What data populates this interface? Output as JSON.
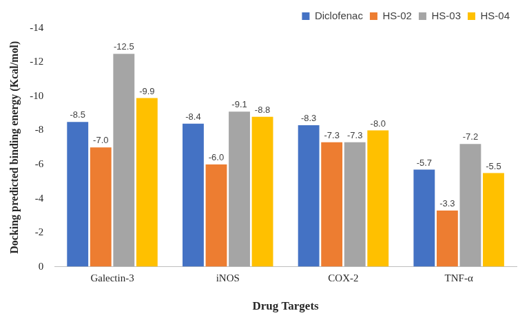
{
  "chart_data": {
    "type": "bar",
    "x_label": "Drug Targets",
    "y_label": "Docking predicted binding energy (Kcal/mol)",
    "categories": [
      "Galectin-3",
      "iNOS",
      "COX-2",
      "TNF-α"
    ],
    "series": [
      {
        "name": "Diclofenac",
        "color": "#4472c4",
        "values": [
          -8.5,
          -8.4,
          -8.3,
          -5.7
        ],
        "value_labels": [
          "-8.5",
          "-8.4",
          "-8.3",
          "-5.7"
        ]
      },
      {
        "name": "HS-02",
        "color": "#ed7d31",
        "values": [
          -7.0,
          -6.0,
          -7.3,
          -3.3
        ],
        "value_labels": [
          "-7.0",
          "-6.0",
          "-7.3",
          "-3.3"
        ]
      },
      {
        "name": "HS-03",
        "color": "#a5a5a5",
        "values": [
          -12.5,
          -9.1,
          -7.3,
          -7.2
        ],
        "value_labels": [
          "-12.5",
          "-9.1",
          "-7.3",
          "-7.2"
        ]
      },
      {
        "name": "HS-04",
        "color": "#ffc000",
        "values": [
          -9.9,
          -8.8,
          -8.0,
          -5.5
        ],
        "value_labels": [
          "-9.9",
          "-8.8",
          "-8.0",
          "-5.5"
        ]
      }
    ],
    "ylim": [
      0,
      -14
    ],
    "yticks": [
      0,
      -2,
      -4,
      -6,
      -8,
      -10,
      -12,
      -14
    ],
    "grid": false,
    "legend": "upper right",
    "data_labels": true
  }
}
